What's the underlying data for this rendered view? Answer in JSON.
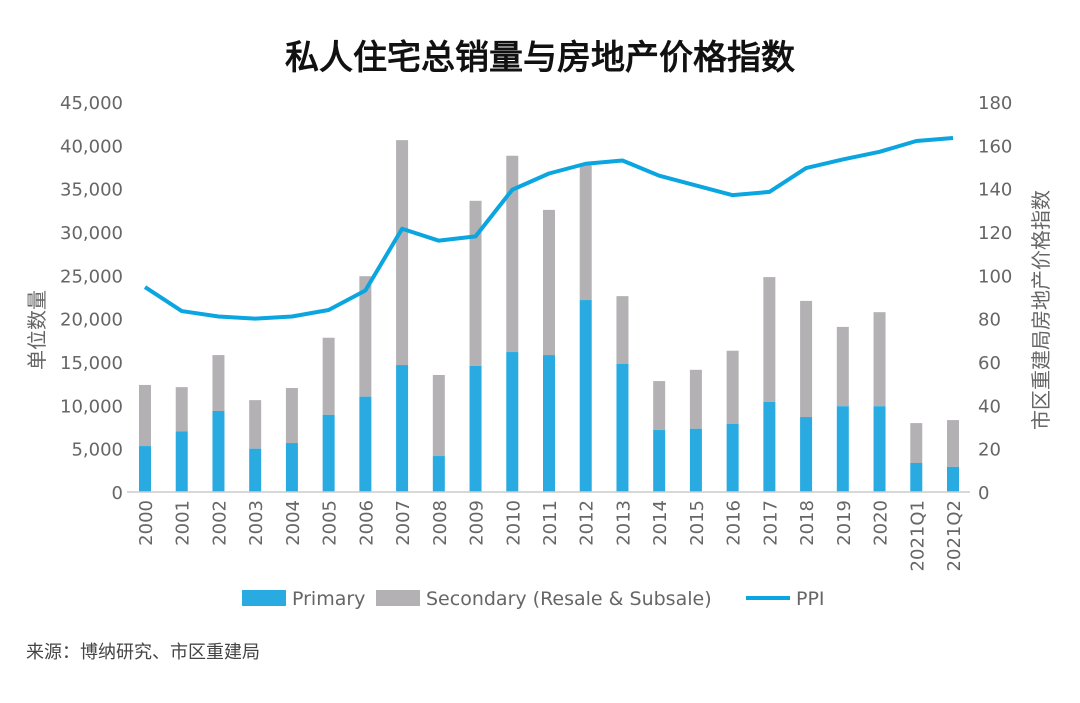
{
  "chart_data": {
    "type": "bar",
    "stacked": true,
    "title": "私人住宅总销量与房地产价格指数",
    "ylabel": "单位数量",
    "y2label": "市区重建局房地产价格指数",
    "ylim": [
      0,
      45000
    ],
    "y2lim": [
      0,
      180
    ],
    "yticks": [
      "0",
      "5,000",
      "10,000",
      "15,000",
      "20,000",
      "25,000",
      "30,000",
      "35,000",
      "40,000",
      "45,000"
    ],
    "y2ticks": [
      "0",
      "20",
      "40",
      "60",
      "80",
      "100",
      "120",
      "140",
      "160",
      "180"
    ],
    "categories": [
      "2000",
      "2001",
      "2002",
      "2003",
      "2004",
      "2005",
      "2006",
      "2007",
      "2008",
      "2009",
      "2010",
      "2011",
      "2012",
      "2013",
      "2014",
      "2015",
      "2016",
      "2017",
      "2018",
      "2019",
      "2020",
      "2021Q1",
      "2021Q2"
    ],
    "series": [
      {
        "name": "Primary",
        "type": "bar",
        "color": "#29abe2",
        "values": [
          5300,
          7000,
          9350,
          5000,
          5650,
          8900,
          11000,
          14650,
          4150,
          14550,
          16150,
          15800,
          22150,
          14800,
          7150,
          7300,
          7850,
          10400,
          8650,
          9900,
          9900,
          3350,
          2900
        ]
      },
      {
        "name": "Secondary (Resale & Subsale)",
        "type": "bar",
        "color": "#b3b1b4",
        "values": [
          7050,
          5100,
          6450,
          5600,
          6350,
          8900,
          13900,
          25950,
          9350,
          19050,
          22650,
          16750,
          15550,
          7800,
          5650,
          6800,
          8450,
          14400,
          13400,
          9150,
          10850,
          4600,
          5400
        ]
      },
      {
        "name": "PPI",
        "type": "line",
        "axis": "right",
        "color": "#0ba5e0",
        "values": [
          94.6,
          83.5,
          81,
          80,
          81,
          84,
          93,
          121.5,
          116,
          118,
          139.5,
          147,
          151.5,
          153,
          146,
          141.5,
          137,
          138.5,
          149.5,
          153.5,
          157,
          162,
          163.4
        ]
      }
    ],
    "legend": "bottom",
    "grid": false
  },
  "source": "来源：博纳研究、市区重建局"
}
